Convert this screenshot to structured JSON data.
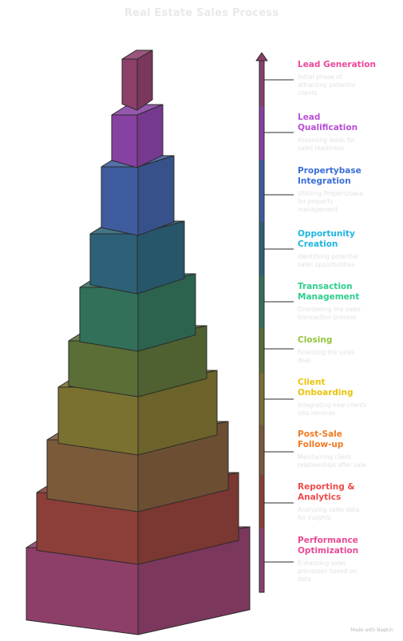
{
  "title": "Real Estate Sales Process",
  "credit": "Made with  Napkin",
  "stages": [
    {
      "title": "Lead Generation",
      "description": "Initial phase of\nattracting potential\nclients",
      "color": "#ec4899",
      "block": "#8d3f6a"
    },
    {
      "title": "Lead\nQualification",
      "description": "Assessing leads for\nsales readiness",
      "color": "#b94fd8",
      "block": "#8741a2"
    },
    {
      "title": "Propertybase\nIntegration",
      "description": "Utilizing Propertybase\nfor property\nmanagement",
      "color": "#3b6fd8",
      "block": "#3e5c9e"
    },
    {
      "title": "Opportunity\nCreation",
      "description": "Identifying potential\nsales opportunities",
      "color": "#1fb6e0",
      "block": "#2c6177"
    },
    {
      "title": "Transaction\nManagement",
      "description": "Overseeing the sales\ntransaction process",
      "color": "#2fcf8c",
      "block": "#32705a"
    },
    {
      "title": "Closing",
      "description": "Finalizing the sales\ndeal",
      "color": "#93c43a",
      "block": "#5a6e36"
    },
    {
      "title": "Client\nOnboarding",
      "description": "Integrating new clients\ninto services",
      "color": "#eac40c",
      "block": "#7a7130"
    },
    {
      "title": "Post-Sale\nFollow-up",
      "description": "Maintaining client\nrelationships after sale",
      "color": "#f07a24",
      "block": "#7b5a3a"
    },
    {
      "title": "Reporting &\nAnalytics",
      "description": "Analyzing sales data\nfor insights",
      "color": "#ef4b4b",
      "block": "#8c3e38"
    },
    {
      "title": "Performance\nOptimization",
      "description": "Enhancing sales\nprocesses based on\ndata",
      "color": "#e84a94",
      "block": "#8d3f6a"
    }
  ]
}
